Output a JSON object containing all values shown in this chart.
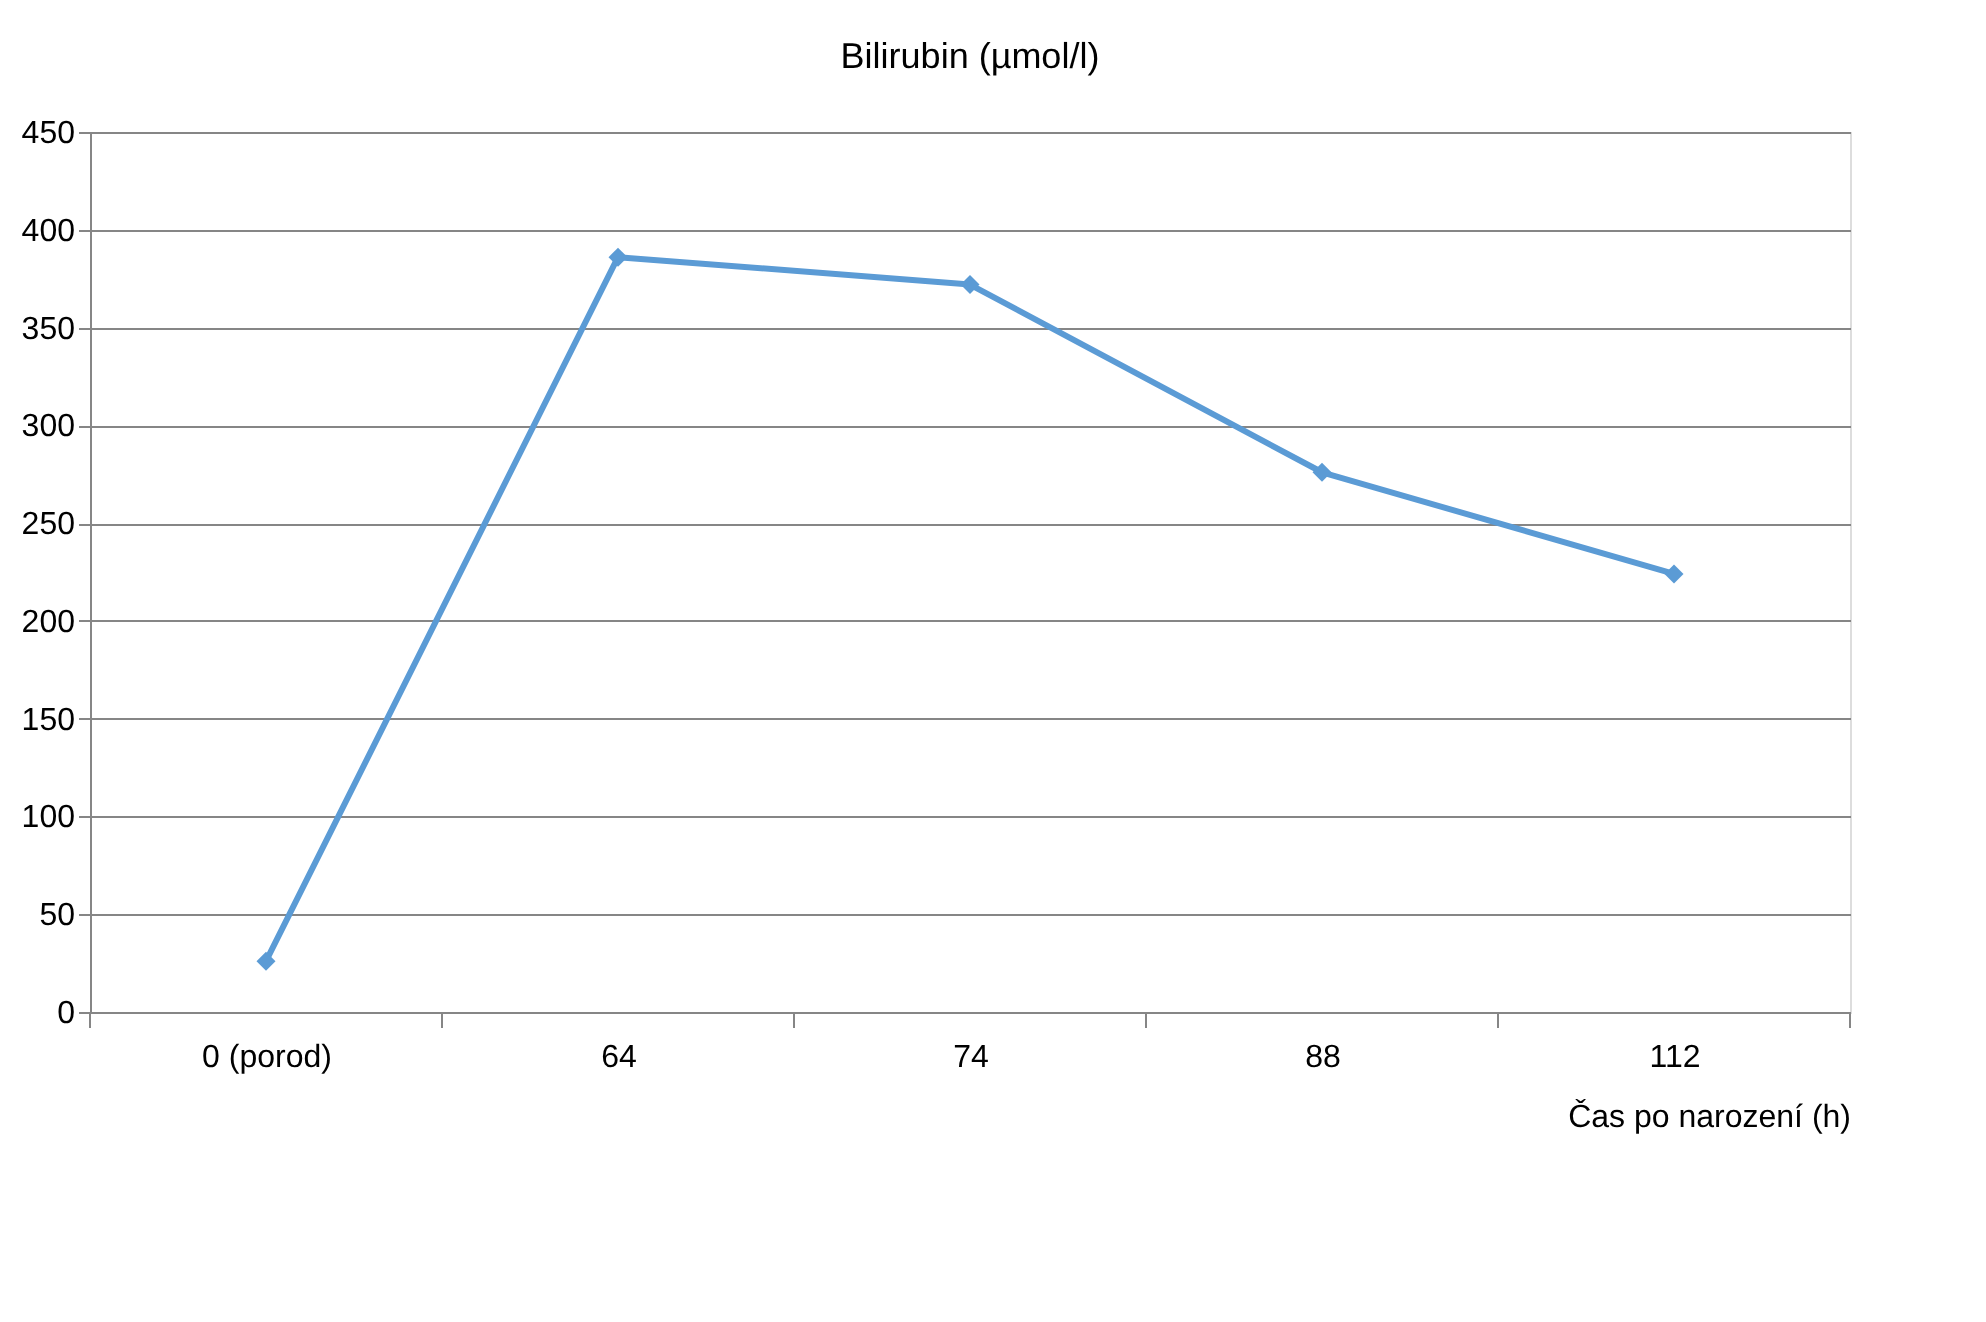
{
  "chart_data": {
    "type": "line",
    "title": "Bilirubin (µmol/l)",
    "xlabel": "Čas po narození (h)",
    "categories": [
      "0 (porod)",
      "64",
      "74",
      "88",
      "112"
    ],
    "series": [
      {
        "color": "#5b9bd5",
        "values": [
          26,
          386,
          372,
          276,
          224
        ]
      }
    ],
    "ylim": [
      0,
      450
    ],
    "yticks": [
      0,
      50,
      100,
      150,
      200,
      250,
      300,
      350,
      400,
      450
    ],
    "grid": "y",
    "marker": "diamond",
    "line_style": "solid"
  }
}
